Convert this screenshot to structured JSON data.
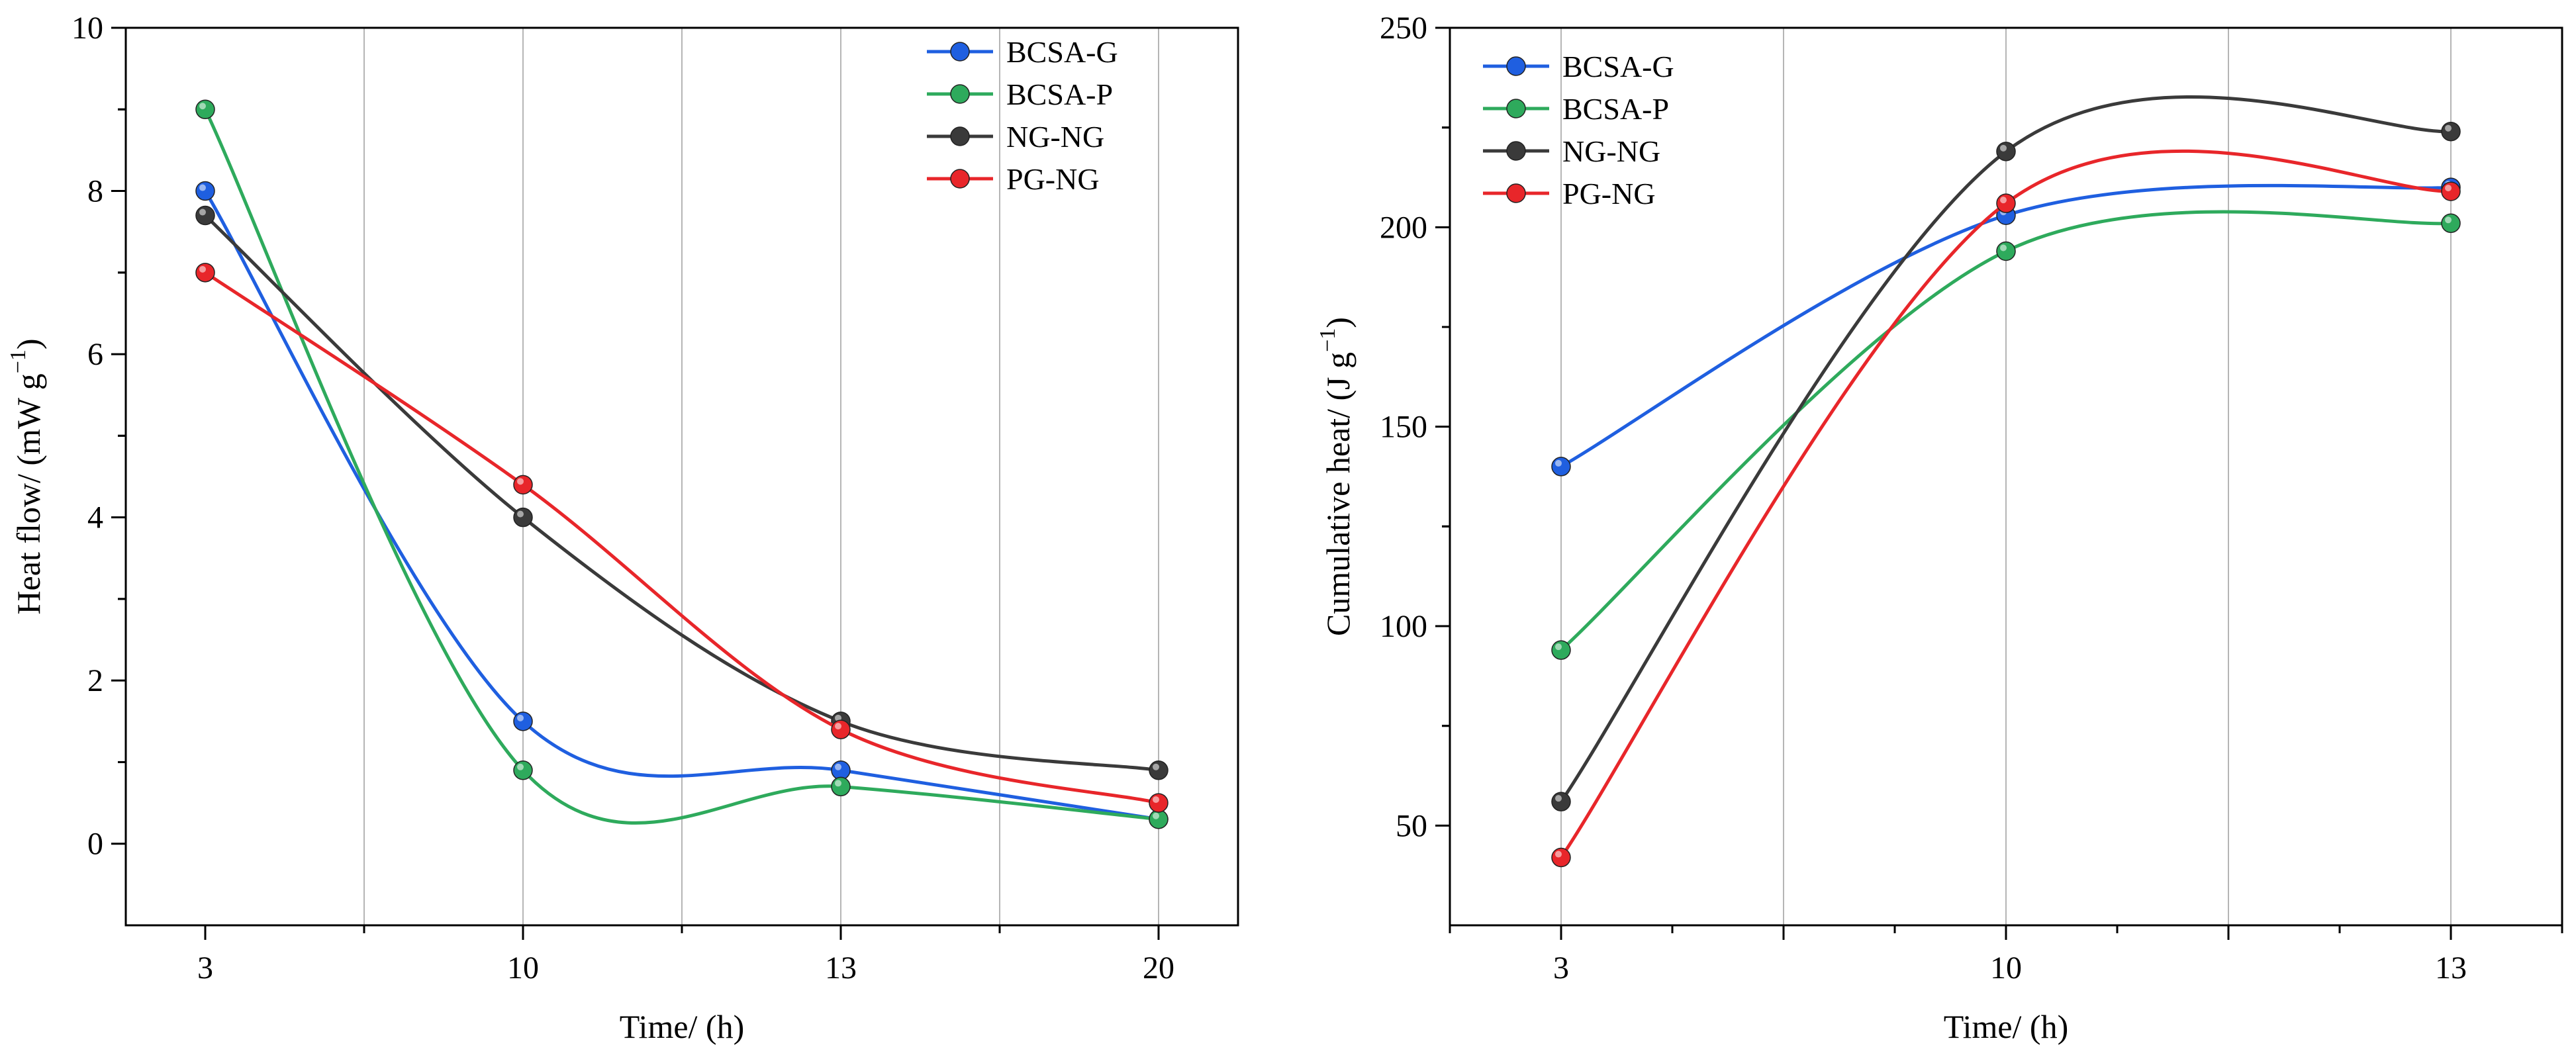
{
  "chart_data": [
    {
      "type": "line",
      "xlabel": "Time/ (h)",
      "ylabel_main": "Heat flow/ (mW g",
      "ylabel_sup": "−1",
      "ylabel_tail": ")",
      "categories": [
        "3",
        "10",
        "13",
        "20"
      ],
      "ylim": [
        -1,
        10
      ],
      "yticks": [
        "0",
        "2",
        "4",
        "6",
        "8",
        "10"
      ],
      "grid": "vertical",
      "legend_position": "top-right",
      "series": [
        {
          "name": "BCSA-G",
          "color": "#1f5fe0",
          "values": [
            8.0,
            1.5,
            0.9,
            0.3
          ]
        },
        {
          "name": "BCSA-P",
          "color": "#2eaa5c",
          "values": [
            9.0,
            0.9,
            0.7,
            0.3
          ]
        },
        {
          "name": "NG-NG",
          "color": "#3a3a3a",
          "values": [
            7.7,
            4.0,
            1.5,
            0.9
          ]
        },
        {
          "name": "PG-NG",
          "color": "#e8262a",
          "values": [
            7.0,
            4.4,
            1.4,
            0.5
          ]
        }
      ]
    },
    {
      "type": "line",
      "xlabel": "Time/ (h)",
      "ylabel_main": "Cumulative heat/ (J g",
      "ylabel_sup": "−1",
      "ylabel_tail": ")",
      "categories": [
        "3",
        "10",
        "13"
      ],
      "ylim": [
        25,
        250
      ],
      "yticks": [
        "50",
        "100",
        "150",
        "200",
        "250"
      ],
      "grid": "vertical",
      "legend_position": "top-left",
      "series": [
        {
          "name": "BCSA-G",
          "color": "#1f5fe0",
          "values": [
            140,
            203,
            210
          ]
        },
        {
          "name": "BCSA-P",
          "color": "#2eaa5c",
          "values": [
            94,
            194,
            201
          ]
        },
        {
          "name": "NG-NG",
          "color": "#3a3a3a",
          "values": [
            56,
            219,
            224
          ]
        },
        {
          "name": "PG-NG",
          "color": "#e8262a",
          "values": [
            42,
            206,
            209
          ]
        }
      ]
    }
  ]
}
